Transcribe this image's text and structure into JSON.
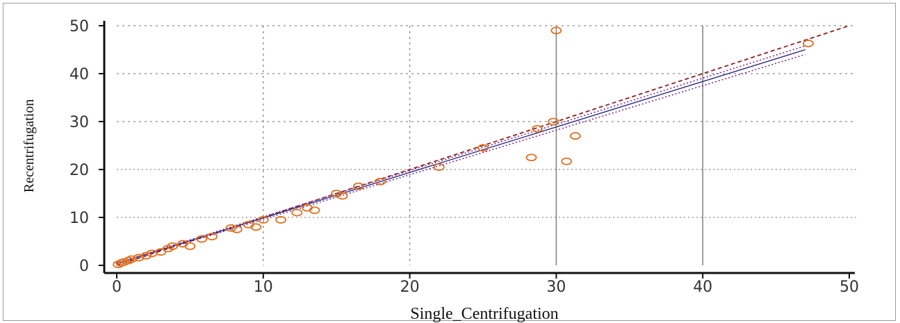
{
  "chart_data": {
    "type": "scatter",
    "title": "",
    "xlabel": "Single_Centrifugation",
    "ylabel": "Recentrifugation",
    "xlim": [
      0,
      50
    ],
    "ylim": [
      0,
      50
    ],
    "xticks": [
      "0",
      "10",
      "20",
      "30",
      "40",
      "50"
    ],
    "yticks": [
      "0",
      "10",
      "20",
      "30",
      "40",
      "50"
    ],
    "grid": true,
    "colors": {
      "points": "#e07020",
      "identity": "#8b2020",
      "fit": "#2a2a80",
      "ci": "#7a2a8a",
      "grid": "#777777",
      "axis": "#111111"
    },
    "points": {
      "x": [
        0.1,
        0.3,
        0.5,
        0.8,
        1.0,
        1.5,
        2.0,
        2.4,
        3.0,
        3.5,
        3.8,
        4.5,
        5.0,
        5.8,
        6.5,
        7.8,
        8.2,
        9.0,
        9.5,
        10.0,
        11.2,
        12.3,
        13.0,
        13.5,
        15.0,
        15.4,
        16.5,
        18.0,
        22.0,
        25.0,
        28.3,
        28.7,
        29.8,
        30.0,
        30.7,
        31.3,
        47.2
      ],
      "y": [
        0.2,
        0.5,
        0.7,
        1.0,
        1.3,
        1.6,
        2.0,
        2.5,
        2.8,
        3.5,
        4.0,
        4.5,
        4.0,
        5.5,
        6.0,
        7.8,
        7.5,
        8.5,
        8.0,
        9.5,
        9.5,
        11.0,
        12.0,
        11.5,
        15.0,
        14.5,
        16.5,
        17.5,
        20.5,
        24.5,
        22.5,
        28.5,
        30.0,
        49.0,
        21.7,
        27.0,
        46.3
      ]
    },
    "lines": [
      {
        "kind": "identity",
        "from": [
          0,
          0
        ],
        "to": [
          50,
          50
        ]
      },
      {
        "kind": "fit",
        "from": [
          0,
          0.4
        ],
        "to": [
          47,
          45.0
        ]
      },
      {
        "kind": "ci-upper",
        "from": [
          0,
          0.5
        ],
        "to": [
          47,
          45.8
        ]
      },
      {
        "kind": "ci-lower",
        "from": [
          0,
          0.3
        ],
        "to": [
          47,
          44.0
        ]
      }
    ]
  }
}
